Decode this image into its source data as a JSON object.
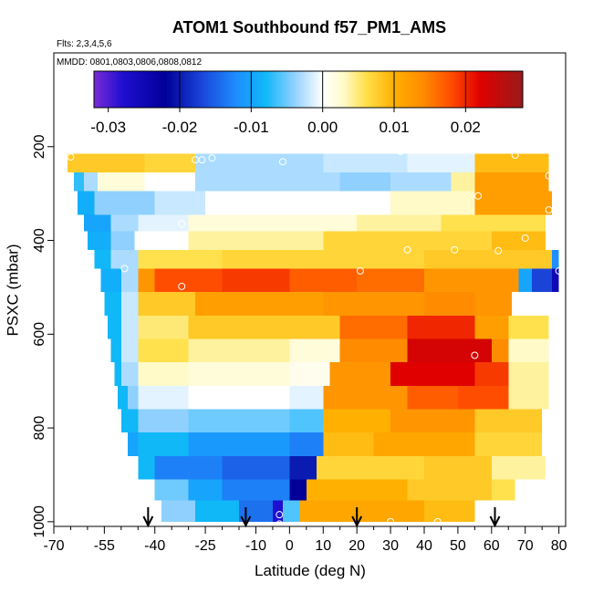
{
  "chart_data": {
    "type": "heatmap",
    "title": "ATOM1 Southbound f57_PM1_AMS",
    "subtitle_flights": "Flts: 2,3,4,5,6",
    "subtitle_dates": "MMDD: 0801,0803,0806,0808,0812",
    "xlabel": "Latitude (deg N)",
    "ylabel": "PSXC (mbar)",
    "xlim": [
      -70,
      82
    ],
    "ylim": [
      1010,
      0
    ],
    "x_ticks_major": [
      -70,
      -55,
      -40,
      -25,
      -10,
      0,
      10,
      20,
      30,
      40,
      50,
      60,
      70,
      80
    ],
    "x_tick_labels": [
      "-70",
      "-55",
      "-40",
      "-25",
      "-10",
      "0",
      "10",
      "20",
      "30",
      "40",
      "50",
      "60",
      "70",
      "80"
    ],
    "x_ticks_minor": [
      -65,
      -60,
      -50,
      -45,
      -35,
      -30,
      -20,
      -15,
      -5,
      5,
      15,
      25,
      35,
      45,
      55,
      65,
      75
    ],
    "y_ticks": [
      200,
      400,
      600,
      800,
      1000
    ],
    "y_tick_labels": [
      "200",
      "400",
      "600",
      "800",
      "1000"
    ],
    "colorbar": {
      "range": [
        -0.032,
        0.028
      ],
      "ticks": [
        -0.03,
        -0.02,
        -0.01,
        0.0,
        0.01,
        0.02
      ],
      "tick_labels": [
        "-0.03",
        "-0.02",
        "-0.01",
        "0.00",
        "0.01",
        "0.02"
      ],
      "boundaries": [
        -0.02,
        -0.01,
        0.0,
        0.01,
        0.02
      ],
      "colors": [
        [
          -0.032,
          "#7b2bd6"
        ],
        [
          -0.028,
          "#1f0fd0"
        ],
        [
          -0.022,
          "#000099"
        ],
        [
          -0.017,
          "#1a44d8"
        ],
        [
          -0.012,
          "#1e8fff"
        ],
        [
          -0.008,
          "#10b8f8"
        ],
        [
          -0.004,
          "#8fd0ff"
        ],
        [
          0.0,
          "#ffffff"
        ],
        [
          0.003,
          "#fffac8"
        ],
        [
          0.006,
          "#ffe14d"
        ],
        [
          0.01,
          "#ffb000"
        ],
        [
          0.014,
          "#ff8c00"
        ],
        [
          0.018,
          "#ff4d00"
        ],
        [
          0.022,
          "#e00000"
        ],
        [
          0.028,
          "#9a1a1a"
        ]
      ]
    },
    "bands": [
      {
        "p_top": 175,
        "p_bot": 215,
        "segments": [
          [
            26,
            32,
            0.0
          ]
        ]
      },
      {
        "p_top": 215,
        "p_bot": 255,
        "segments": [
          [
            -66,
            -43,
            0.008
          ],
          [
            -43,
            -28,
            0.007
          ],
          [
            -28,
            10,
            -0.003
          ],
          [
            10,
            35,
            -0.002
          ],
          [
            35,
            55,
            -0.001
          ],
          [
            55,
            77,
            0.009
          ]
        ]
      },
      {
        "p_top": 255,
        "p_bot": 295,
        "segments": [
          [
            -64,
            -61,
            -0.007
          ],
          [
            -61,
            -57,
            -0.003
          ],
          [
            -57,
            -43,
            0.002
          ],
          [
            -43,
            -28,
            0.0
          ],
          [
            -28,
            15,
            -0.003
          ],
          [
            15,
            30,
            -0.004
          ],
          [
            30,
            48,
            -0.003
          ],
          [
            48,
            55,
            0.004
          ],
          [
            55,
            77,
            0.012
          ]
        ]
      },
      {
        "p_top": 295,
        "p_bot": 345,
        "segments": [
          [
            -63,
            -58,
            -0.009
          ],
          [
            -58,
            -40,
            -0.004
          ],
          [
            -40,
            -25,
            -0.002
          ],
          [
            -25,
            0,
            0.0
          ],
          [
            0,
            30,
            0.0
          ],
          [
            30,
            55,
            0.003
          ],
          [
            55,
            78,
            0.012
          ]
        ]
      },
      {
        "p_top": 345,
        "p_bot": 380,
        "segments": [
          [
            -61,
            -53,
            -0.01
          ],
          [
            -53,
            -45,
            -0.003
          ],
          [
            -45,
            -30,
            -0.001
          ],
          [
            -30,
            20,
            0.002
          ],
          [
            20,
            45,
            0.004
          ],
          [
            45,
            76,
            0.006
          ]
        ]
      },
      {
        "p_top": 380,
        "p_bot": 420,
        "segments": [
          [
            -60,
            -53,
            -0.009
          ],
          [
            -53,
            -46,
            -0.004
          ],
          [
            -46,
            -30,
            0.0
          ],
          [
            -30,
            10,
            0.004
          ],
          [
            10,
            40,
            0.007
          ],
          [
            40,
            60,
            0.007
          ],
          [
            60,
            76,
            0.009
          ]
        ]
      },
      {
        "p_top": 420,
        "p_bot": 460,
        "segments": [
          [
            -58,
            -53,
            -0.008
          ],
          [
            -53,
            -45,
            -0.003
          ],
          [
            -45,
            -20,
            0.006
          ],
          [
            -20,
            10,
            0.007
          ],
          [
            10,
            40,
            0.007
          ],
          [
            40,
            78,
            0.008
          ],
          [
            78,
            80,
            -0.012
          ]
        ]
      },
      {
        "p_top": 460,
        "p_bot": 510,
        "segments": [
          [
            -56,
            -50,
            -0.009
          ],
          [
            -50,
            -45,
            -0.003
          ],
          [
            -45,
            -40,
            0.013
          ],
          [
            -40,
            -20,
            0.018
          ],
          [
            -20,
            0,
            0.019
          ],
          [
            0,
            20,
            0.017
          ],
          [
            20,
            40,
            0.016
          ],
          [
            40,
            68,
            0.013
          ],
          [
            68,
            72,
            -0.01
          ],
          [
            72,
            78,
            -0.017
          ],
          [
            78,
            80,
            -0.025
          ]
        ]
      },
      {
        "p_top": 510,
        "p_bot": 560,
        "segments": [
          [
            -55,
            -50,
            -0.008
          ],
          [
            -50,
            -45,
            -0.002
          ],
          [
            -45,
            -28,
            0.008
          ],
          [
            -28,
            10,
            0.012
          ],
          [
            10,
            40,
            0.013
          ],
          [
            40,
            55,
            0.014
          ],
          [
            55,
            66,
            0.013
          ],
          [
            66,
            78,
            0.0
          ]
        ]
      },
      {
        "p_top": 560,
        "p_bot": 610,
        "segments": [
          [
            -54,
            -50,
            -0.008
          ],
          [
            -50,
            -45,
            -0.002
          ],
          [
            -45,
            -30,
            0.005
          ],
          [
            -30,
            15,
            0.008
          ],
          [
            15,
            35,
            0.016
          ],
          [
            35,
            55,
            0.02
          ],
          [
            55,
            65,
            0.012
          ],
          [
            65,
            77,
            0.006
          ]
        ]
      },
      {
        "p_top": 610,
        "p_bot": 660,
        "segments": [
          [
            -53,
            -50,
            -0.008
          ],
          [
            -50,
            -45,
            -0.002
          ],
          [
            -45,
            -30,
            0.006
          ],
          [
            -30,
            0,
            0.004
          ],
          [
            0,
            15,
            0.002
          ],
          [
            15,
            35,
            0.014
          ],
          [
            35,
            60,
            0.023
          ],
          [
            60,
            65,
            0.014
          ],
          [
            65,
            77,
            0.003
          ]
        ]
      },
      {
        "p_top": 660,
        "p_bot": 710,
        "segments": [
          [
            -52,
            -50,
            -0.008
          ],
          [
            -50,
            -45,
            -0.003
          ],
          [
            -45,
            -30,
            0.003
          ],
          [
            -30,
            0,
            0.002
          ],
          [
            0,
            12,
            0.001
          ],
          [
            12,
            30,
            0.013
          ],
          [
            30,
            55,
            0.022
          ],
          [
            55,
            65,
            0.019
          ],
          [
            65,
            77,
            0.004
          ]
        ]
      },
      {
        "p_top": 710,
        "p_bot": 760,
        "segments": [
          [
            -51,
            -48,
            -0.008
          ],
          [
            -48,
            -45,
            -0.004
          ],
          [
            -45,
            -30,
            -0.001
          ],
          [
            -30,
            0,
            0.0
          ],
          [
            0,
            10,
            -0.001
          ],
          [
            10,
            35,
            0.013
          ],
          [
            35,
            50,
            0.017
          ],
          [
            50,
            65,
            0.018
          ],
          [
            65,
            77,
            0.004
          ]
        ]
      },
      {
        "p_top": 760,
        "p_bot": 810,
        "segments": [
          [
            -50,
            -45,
            -0.008
          ],
          [
            -45,
            -30,
            -0.004
          ],
          [
            -30,
            0,
            -0.005
          ],
          [
            0,
            10,
            -0.006
          ],
          [
            10,
            30,
            0.01
          ],
          [
            30,
            55,
            0.013
          ],
          [
            55,
            75,
            0.008
          ]
        ]
      },
      {
        "p_top": 810,
        "p_bot": 860,
        "segments": [
          [
            -48,
            -45,
            -0.01
          ],
          [
            -45,
            -30,
            -0.008
          ],
          [
            -30,
            0,
            -0.011
          ],
          [
            0,
            10,
            -0.013
          ],
          [
            10,
            25,
            0.009
          ],
          [
            25,
            55,
            0.011
          ],
          [
            55,
            75,
            0.007
          ]
        ]
      },
      {
        "p_top": 860,
        "p_bot": 910,
        "segments": [
          [
            -45,
            -40,
            -0.008
          ],
          [
            -40,
            -20,
            -0.013
          ],
          [
            -20,
            0,
            -0.015
          ],
          [
            0,
            8,
            -0.02
          ],
          [
            8,
            40,
            0.007
          ],
          [
            40,
            60,
            0.008
          ],
          [
            60,
            76,
            0.004
          ]
        ]
      },
      {
        "p_top": 910,
        "p_bot": 955,
        "segments": [
          [
            -40,
            -30,
            -0.005
          ],
          [
            -30,
            -20,
            -0.01
          ],
          [
            -20,
            0,
            -0.013
          ],
          [
            0,
            5,
            -0.022
          ],
          [
            5,
            35,
            0.01
          ],
          [
            35,
            60,
            0.008
          ],
          [
            60,
            67,
            0.006
          ]
        ]
      },
      {
        "p_top": 955,
        "p_bot": 1000,
        "segments": [
          [
            -38,
            -28,
            -0.004
          ],
          [
            -28,
            -15,
            -0.008
          ],
          [
            -15,
            -5,
            -0.014
          ],
          [
            -5,
            -2,
            -0.028
          ],
          [
            -2,
            3,
            -0.006
          ],
          [
            3,
            40,
            0.011
          ],
          [
            40,
            55,
            0.009
          ],
          [
            55,
            58,
            0.0
          ]
        ]
      }
    ],
    "sample_points": [
      [
        -65,
        222
      ],
      [
        -28,
        228
      ],
      [
        -26,
        228
      ],
      [
        -23,
        224
      ],
      [
        -2,
        232
      ],
      [
        26,
        180
      ],
      [
        33,
        210
      ],
      [
        67,
        218
      ],
      [
        77,
        262
      ],
      [
        56,
        305
      ],
      [
        77,
        335
      ],
      [
        -32,
        365
      ],
      [
        70,
        395
      ],
      [
        35,
        420
      ],
      [
        49,
        420
      ],
      [
        62,
        422
      ],
      [
        -49,
        460
      ],
      [
        21,
        465
      ],
      [
        -32,
        498
      ],
      [
        80,
        465
      ],
      [
        55,
        645
      ],
      [
        -52,
        785
      ],
      [
        -3,
        985
      ],
      [
        30,
        1000
      ],
      [
        44,
        1000
      ],
      [
        -3,
        1005
      ]
    ],
    "arrows_latitude": [
      -42,
      -13,
      20,
      61
    ]
  }
}
